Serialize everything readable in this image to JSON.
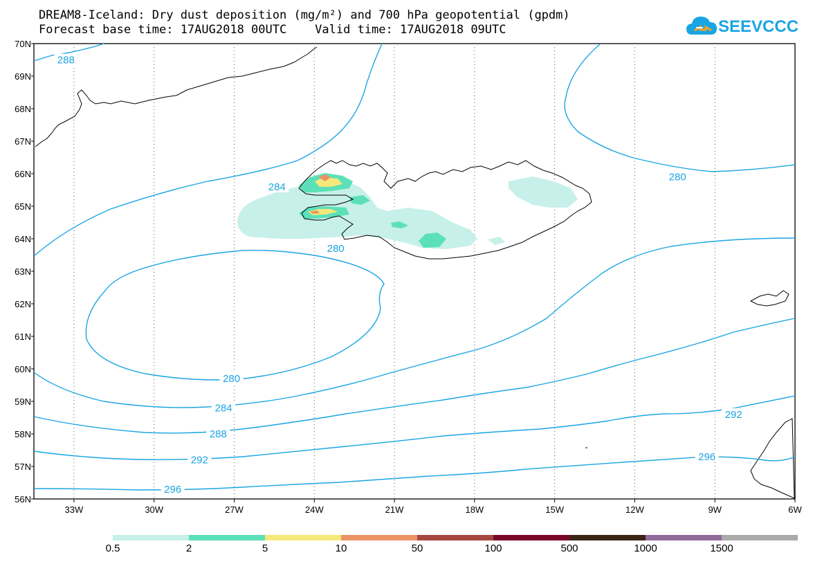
{
  "title_line1": "DREAM8-Iceland: Dry dust deposition (mg/m²) and 700 hPa geopotential (gpdm)",
  "title_line2": "Forecast base time: 17AUG2018 00UTC    Valid time: 17AUG2018 09UTC",
  "logo": {
    "text": "SEEVCCC",
    "icon": "cloud-logo-icon",
    "color": "#1aa5e3"
  },
  "axes": {
    "lat_labels": [
      "70N",
      "69N",
      "68N",
      "67N",
      "66N",
      "65N",
      "64N",
      "63N",
      "62N",
      "61N",
      "60N",
      "59N",
      "58N",
      "57N",
      "56N"
    ],
    "lon_labels": [
      "33W",
      "30W",
      "27W",
      "24W",
      "21W",
      "18W",
      "15W",
      "12W",
      "9W",
      "6W"
    ],
    "lat_range": [
      56,
      70
    ],
    "lon_range": [
      -34.5,
      -6
    ],
    "grid": "dotted"
  },
  "contour_labels": [
    {
      "value": "288",
      "lon": -33.3,
      "lat": 69.5
    },
    {
      "value": "284",
      "lon": -25.4,
      "lat": 65.6
    },
    {
      "value": "280",
      "lon": -23.2,
      "lat": 63.7
    },
    {
      "value": "280",
      "lon": -10.4,
      "lat": 65.9
    },
    {
      "value": "280",
      "lon": -27.1,
      "lat": 59.7
    },
    {
      "value": "284",
      "lon": -27.4,
      "lat": 58.8
    },
    {
      "value": "288",
      "lon": -27.6,
      "lat": 58.0
    },
    {
      "value": "292",
      "lon": -28.3,
      "lat": 57.2
    },
    {
      "value": "292",
      "lon": -8.3,
      "lat": 58.6
    },
    {
      "value": "296",
      "lon": -29.3,
      "lat": 56.3
    },
    {
      "value": "296",
      "lon": -9.3,
      "lat": 57.3
    }
  ],
  "contour_color": "#1aa5e3",
  "colorbar": {
    "colors": [
      "#c7f0ea",
      "#5ce0b8",
      "#f5e87a",
      "#ec9366",
      "#a5473f",
      "#7a0828",
      "#3b2418",
      "#906a98",
      "#aaaaaa"
    ],
    "labels": [
      "0.5",
      "2",
      "5",
      "10",
      "50",
      "100",
      "500",
      "1000",
      "1500"
    ]
  }
}
